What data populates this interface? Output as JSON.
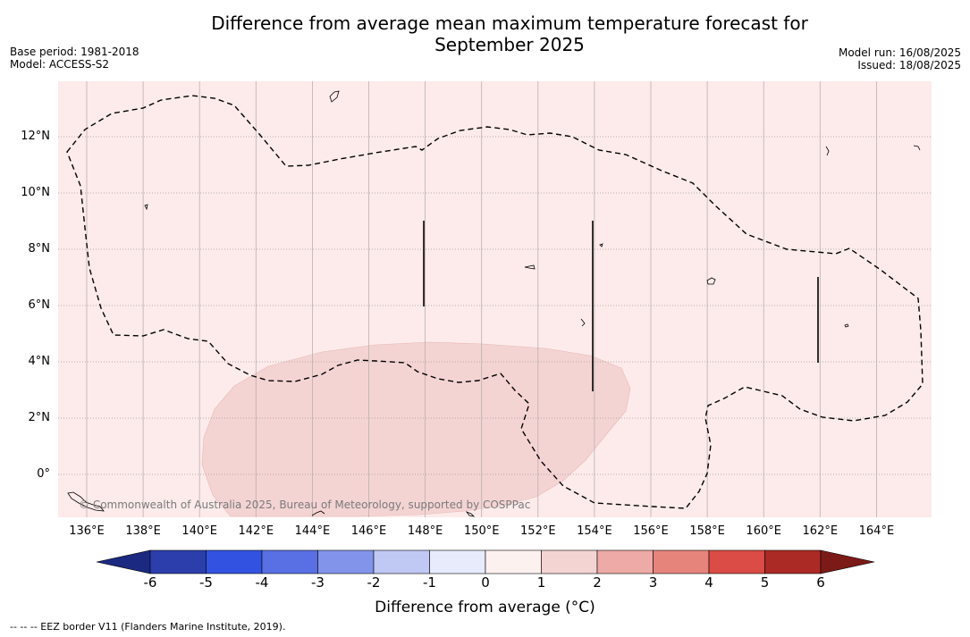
{
  "title_line1": "Difference from average mean maximum temperature forecast for",
  "title_line2": "September 2025",
  "meta": {
    "base_period": "Base period: 1981-2018",
    "model": "Model: ACCESS-S2",
    "model_run": "Model run: 16/08/2025",
    "issued": "Issued: 18/08/2025"
  },
  "map": {
    "lon_ticks": [
      "136°E",
      "138°E",
      "140°E",
      "142°E",
      "144°E",
      "146°E",
      "148°E",
      "150°E",
      "152°E",
      "154°E",
      "156°E",
      "158°E",
      "160°E",
      "162°E",
      "164°E"
    ],
    "lat_ticks": [
      "12°N",
      "10°N",
      "8°N",
      "6°N",
      "4°N",
      "2°N",
      "0°"
    ],
    "background_colour": "#fcebea",
    "anomaly_patch_colour": "#f4d4d3",
    "copyright": "© Commonwealth of Australia 2025, Bureau of Meteorology, supported by COSPPac"
  },
  "colorbar": {
    "label": "Difference from average (°C)",
    "ticks": [
      "-6",
      "-5",
      "-4",
      "-3",
      "-2",
      "-1",
      "0",
      "1",
      "2",
      "3",
      "4",
      "5",
      "6"
    ],
    "colours": [
      "#1b2a80",
      "#2b3eab",
      "#3253e1",
      "#596fe4",
      "#8294ea",
      "#c0c8f4",
      "#e8ebfc",
      "#fdf1f0",
      "#f4d4d3",
      "#edaaa6",
      "#e6847c",
      "#da4c45",
      "#ac2a25",
      "#7b1a17"
    ]
  },
  "footnote": "--  --  -- EEZ border V11 (Flanders Marine Institute, 2019)."
}
